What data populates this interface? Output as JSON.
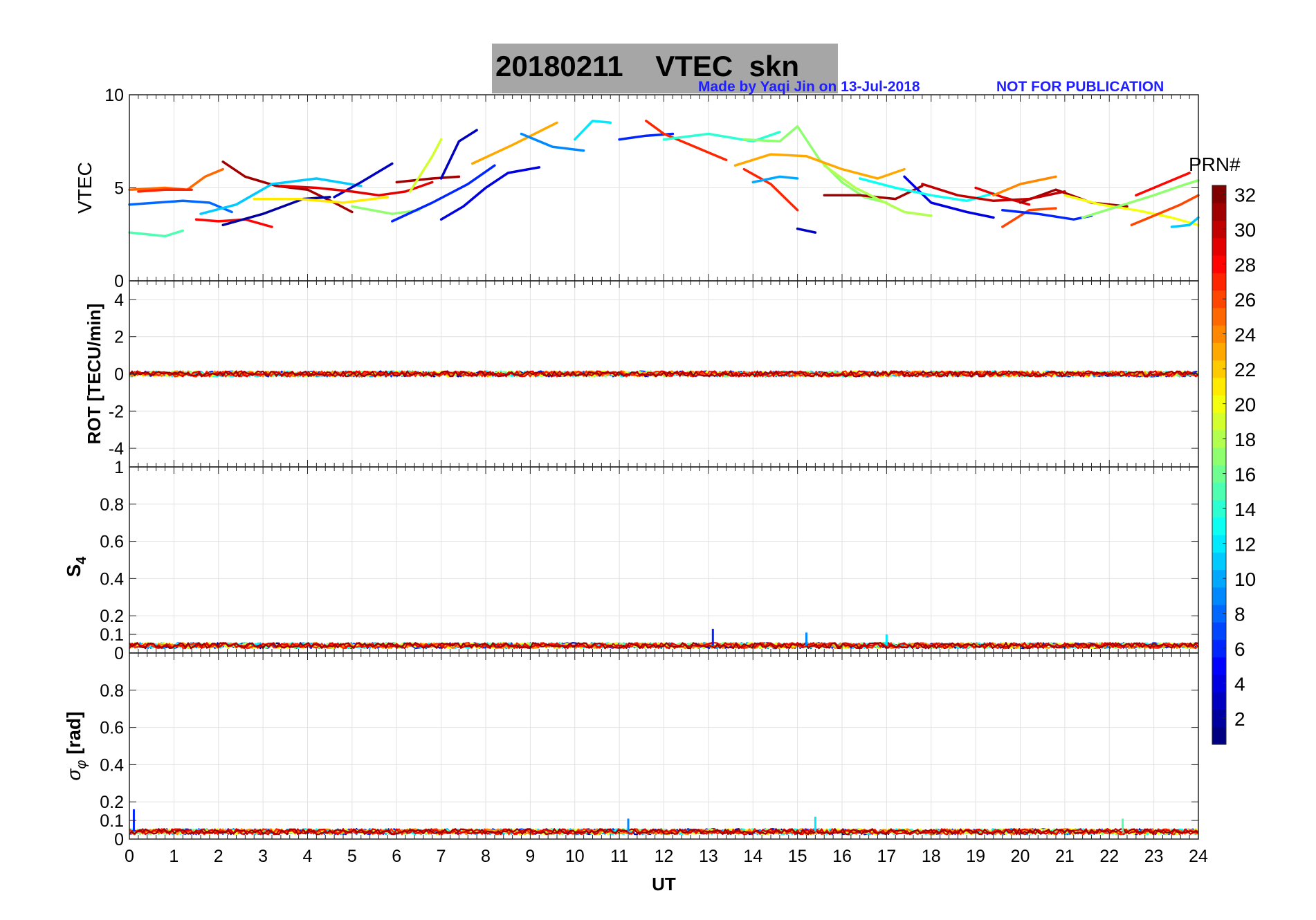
{
  "title": {
    "date": "20180211",
    "text": "VTEC  skn"
  },
  "credit": {
    "made_by": "Made by Yaqi Jin on 13-Jul-2018",
    "notice": "NOT FOR PUBLICATION"
  },
  "colors": {
    "title_box": "#a6a6a6",
    "credit_text": "#1f1fff",
    "grid": "#e2e2e2"
  },
  "x_axis": {
    "label": "UT",
    "range": [
      0,
      24
    ],
    "tick_labels": [
      "0",
      "1",
      "2",
      "3",
      "4",
      "5",
      "6",
      "7",
      "8",
      "9",
      "10",
      "11",
      "12",
      "13",
      "14",
      "15",
      "16",
      "17",
      "18",
      "19",
      "20",
      "21",
      "22",
      "23",
      "24"
    ]
  },
  "colorbar": {
    "label": "PRN#",
    "range": [
      1,
      32
    ],
    "tick_labels": [
      "2",
      "4",
      "6",
      "8",
      "10",
      "12",
      "14",
      "16",
      "18",
      "20",
      "22",
      "24",
      "26",
      "28",
      "30",
      "32"
    ],
    "colormap": "jet"
  },
  "chart_data": [
    {
      "type": "line",
      "panel": "vtec",
      "ylabel": "VTEC",
      "ylim": [
        0,
        10
      ],
      "ytick_labels": [
        "0",
        "5",
        "10"
      ],
      "xlim": [
        0,
        24
      ],
      "series": [
        {
          "prn": 8,
          "x": [
            0.0,
            0.6,
            1.2,
            1.8,
            2.3
          ],
          "y": [
            4.1,
            4.2,
            4.3,
            4.2,
            3.7
          ]
        },
        {
          "prn": 25,
          "x": [
            0.0,
            0.8,
            1.3,
            1.7,
            2.1
          ],
          "y": [
            4.9,
            5.0,
            4.9,
            5.6,
            6.0
          ]
        },
        {
          "prn": 15,
          "x": [
            0.0,
            0.4,
            0.8,
            1.2
          ],
          "y": [
            2.6,
            2.5,
            2.4,
            2.7
          ]
        },
        {
          "prn": 28,
          "x": [
            1.5,
            2.0,
            2.6,
            3.2
          ],
          "y": [
            3.3,
            3.2,
            3.3,
            2.9
          ]
        },
        {
          "prn": 31,
          "x": [
            2.1,
            2.6,
            3.3,
            4.0,
            4.6,
            5.0
          ],
          "y": [
            6.4,
            5.6,
            5.1,
            4.9,
            4.2,
            3.7
          ]
        },
        {
          "prn": 11,
          "x": [
            1.6,
            2.4,
            3.2,
            4.2,
            5.2
          ],
          "y": [
            3.6,
            4.1,
            5.2,
            5.5,
            5.1
          ]
        },
        {
          "prn": 2,
          "x": [
            2.1,
            3.0,
            3.9,
            4.5
          ],
          "y": [
            3.0,
            3.6,
            4.4,
            4.5
          ]
        },
        {
          "prn": 21,
          "x": [
            2.8,
            3.8,
            4.8,
            5.8
          ],
          "y": [
            4.4,
            4.4,
            4.2,
            4.5
          ]
        },
        {
          "prn": 27,
          "x": [
            0.2,
            0.8,
            1.4
          ],
          "y": [
            4.8,
            4.9,
            4.9
          ]
        },
        {
          "prn": 3,
          "x": [
            4.6,
            5.2,
            5.9
          ],
          "y": [
            4.5,
            5.3,
            6.3
          ]
        },
        {
          "prn": 29,
          "x": [
            3.4,
            4.2,
            5.0,
            5.6,
            6.2,
            6.8
          ],
          "y": [
            5.1,
            5.0,
            4.8,
            4.6,
            4.8,
            5.3
          ]
        },
        {
          "prn": 31,
          "x": [
            6.0,
            6.8,
            7.4
          ],
          "y": [
            5.3,
            5.5,
            5.6
          ]
        },
        {
          "prn": 19,
          "x": [
            6.3,
            6.8,
            7.0
          ],
          "y": [
            4.8,
            6.7,
            7.6
          ]
        },
        {
          "prn": 17,
          "x": [
            5.0,
            5.9,
            6.5
          ],
          "y": [
            4.0,
            3.6,
            3.8
          ]
        },
        {
          "prn": 6,
          "x": [
            5.9,
            6.8,
            7.6,
            8.2
          ],
          "y": [
            3.2,
            4.2,
            5.2,
            6.2
          ]
        },
        {
          "prn": 4,
          "x": [
            7.0,
            7.5,
            8.0,
            8.5,
            9.2
          ],
          "y": [
            3.3,
            4.0,
            5.0,
            5.8,
            6.1
          ]
        },
        {
          "prn": 3,
          "x": [
            7.0,
            7.4,
            7.8
          ],
          "y": [
            5.5,
            7.5,
            8.1
          ]
        },
        {
          "prn": 23,
          "x": [
            7.7,
            8.6,
            9.6
          ],
          "y": [
            6.3,
            7.3,
            8.5
          ]
        },
        {
          "prn": 9,
          "x": [
            8.8,
            9.5,
            10.2
          ],
          "y": [
            7.9,
            7.2,
            7.0
          ]
        },
        {
          "prn": 12,
          "x": [
            10.0,
            10.4,
            10.8
          ],
          "y": [
            7.6,
            8.6,
            8.5
          ]
        },
        {
          "prn": 6,
          "x": [
            11.0,
            11.6,
            12.2
          ],
          "y": [
            7.6,
            7.8,
            7.9
          ]
        },
        {
          "prn": 27,
          "x": [
            11.6,
            12.0,
            12.4,
            12.9,
            13.4
          ],
          "y": [
            8.6,
            7.9,
            7.5,
            7.0,
            6.5
          ]
        },
        {
          "prn": 14,
          "x": [
            12.0,
            13.0,
            14.0,
            14.6
          ],
          "y": [
            7.6,
            7.9,
            7.5,
            8.0
          ]
        },
        {
          "prn": 17,
          "x": [
            13.8,
            14.6,
            15.0,
            15.5,
            16.0,
            16.5,
            17.0
          ],
          "y": [
            7.6,
            7.5,
            8.3,
            6.5,
            5.3,
            4.5,
            4.2
          ]
        },
        {
          "prn": 23,
          "x": [
            13.6,
            14.4,
            15.2,
            16.0,
            16.8,
            17.4
          ],
          "y": [
            6.2,
            6.8,
            6.7,
            6.0,
            5.5,
            6.0
          ]
        },
        {
          "prn": 27,
          "x": [
            13.8,
            14.4,
            15.0
          ],
          "y": [
            6.0,
            5.2,
            3.8
          ]
        },
        {
          "prn": 3,
          "x": [
            15.0,
            15.4
          ],
          "y": [
            2.8,
            2.6
          ]
        },
        {
          "prn": 10,
          "x": [
            14.0,
            14.6,
            15.0
          ],
          "y": [
            5.3,
            5.6,
            5.5
          ]
        },
        {
          "prn": 31,
          "x": [
            15.6,
            16.4,
            17.2,
            17.8
          ],
          "y": [
            4.6,
            4.6,
            4.4,
            5.1
          ]
        },
        {
          "prn": 18,
          "x": [
            15.6,
            16.3,
            16.8,
            17.4,
            18.0
          ],
          "y": [
            6.2,
            5.0,
            4.4,
            3.7,
            3.5
          ]
        },
        {
          "prn": 4,
          "x": [
            17.4,
            18.0,
            18.8,
            19.4
          ],
          "y": [
            5.6,
            4.2,
            3.7,
            3.4
          ]
        },
        {
          "prn": 13,
          "x": [
            16.4,
            17.2,
            18.0,
            18.8,
            19.4
          ],
          "y": [
            5.5,
            5.0,
            4.6,
            4.3,
            4.7
          ]
        },
        {
          "prn": 29,
          "x": [
            19.0,
            19.6,
            20.2
          ],
          "y": [
            5.0,
            4.5,
            4.1
          ]
        },
        {
          "prn": 26,
          "x": [
            19.6,
            20.2,
            20.8
          ],
          "y": [
            2.9,
            3.8,
            3.9
          ]
        },
        {
          "prn": 24,
          "x": [
            19.4,
            20.0,
            20.8
          ],
          "y": [
            4.6,
            5.2,
            5.6
          ]
        },
        {
          "prn": 6,
          "x": [
            19.6,
            20.4,
            21.2,
            21.6
          ],
          "y": [
            3.8,
            3.6,
            3.3,
            3.5
          ]
        },
        {
          "prn": 31,
          "x": [
            20.0,
            20.8,
            21.6,
            22.4
          ],
          "y": [
            4.2,
            4.9,
            4.2,
            4.0
          ]
        },
        {
          "prn": 20,
          "x": [
            21.0,
            21.8,
            22.6,
            23.4,
            24.0
          ],
          "y": [
            4.6,
            4.1,
            3.8,
            3.4,
            3.0
          ]
        },
        {
          "prn": 17,
          "x": [
            21.4,
            22.2,
            23.0,
            23.6,
            24.0
          ],
          "y": [
            3.4,
            4.0,
            4.6,
            5.1,
            5.4
          ]
        },
        {
          "prn": 26,
          "x": [
            22.5,
            23.0,
            23.6,
            24.0
          ],
          "y": [
            3.0,
            3.5,
            4.1,
            4.6
          ]
        },
        {
          "prn": 28,
          "x": [
            22.6,
            23.2,
            23.8
          ],
          "y": [
            4.6,
            5.2,
            5.8
          ]
        },
        {
          "prn": 30,
          "x": [
            17.8,
            18.6,
            19.4,
            20.2,
            21.0
          ],
          "y": [
            5.2,
            4.6,
            4.3,
            4.4,
            4.8
          ]
        },
        {
          "prn": 11,
          "x": [
            23.4,
            23.8,
            24.0
          ],
          "y": [
            2.9,
            3.0,
            3.4
          ]
        }
      ]
    },
    {
      "type": "line",
      "panel": "rot",
      "ylabel": "ROT [TECU/min]",
      "ylim": [
        -5,
        5
      ],
      "ytick_labels": [
        "-4",
        "-2",
        "0",
        "2",
        "4"
      ],
      "xlim": [
        0,
        24
      ],
      "description_values": {
        "typical_value": 0.0,
        "spread": 0.15
      }
    },
    {
      "type": "line",
      "panel": "s4",
      "ylabel": "S4",
      "ylim": [
        0,
        1
      ],
      "ytick_labels": [
        "0",
        "0.1",
        "0.2",
        "0.4",
        "0.6",
        "0.8",
        "1"
      ],
      "xlim": [
        0,
        24
      ],
      "description_values": {
        "typical_value": 0.04,
        "peaks": [
          {
            "x": 13.1,
            "y": 0.13
          },
          {
            "x": 15.2,
            "y": 0.11
          },
          {
            "x": 17.0,
            "y": 0.1
          }
        ]
      }
    },
    {
      "type": "line",
      "panel": "sigma_phi",
      "ylabel": "σφ [rad]",
      "ylim": [
        0,
        1
      ],
      "ytick_labels": [
        "0",
        "0.1",
        "0.2",
        "0.4",
        "0.6",
        "0.8"
      ],
      "xlim": [
        0,
        24
      ],
      "description_values": {
        "typical_value": 0.04,
        "peaks": [
          {
            "x": 0.1,
            "y": 0.16
          },
          {
            "x": 11.2,
            "y": 0.11
          },
          {
            "x": 15.4,
            "y": 0.12
          },
          {
            "x": 22.3,
            "y": 0.11
          }
        ]
      }
    }
  ]
}
